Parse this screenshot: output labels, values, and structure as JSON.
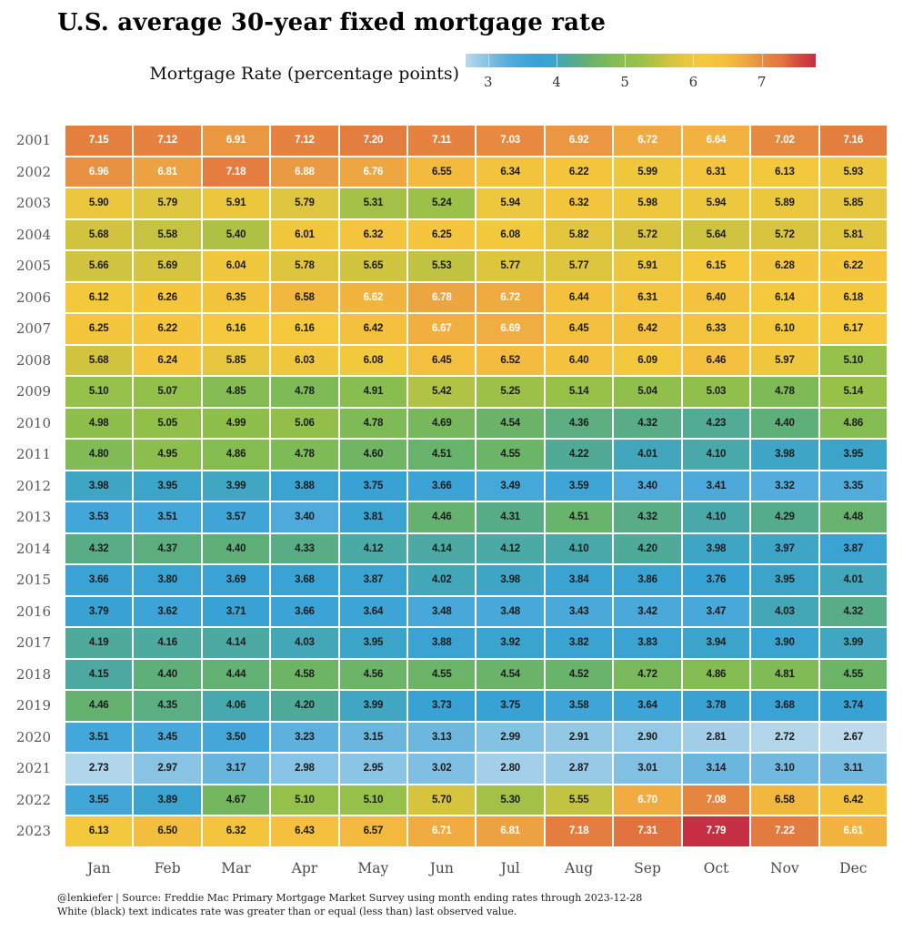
{
  "title": "U.S. average 30-year fixed mortgage rate",
  "legend": {
    "label": "Mortgage Rate  (percentage points)",
    "ticks": [
      3,
      4,
      5,
      6,
      7
    ]
  },
  "footer": {
    "line1": "@lenkiefer | Source: Freddie Mac Primary Mortgage Market Survey using month ending rates through 2023-12-28",
    "line2": "White (black) text indicates rate was greater than or equal (less than) last observed value."
  },
  "chart_data": {
    "type": "heatmap",
    "title": "U.S. average 30-year fixed mortgage rate",
    "x_categories": [
      "Jan",
      "Feb",
      "Mar",
      "Apr",
      "May",
      "Jun",
      "Jul",
      "Aug",
      "Sep",
      "Oct",
      "Nov",
      "Dec"
    ],
    "series": [
      {
        "name": "2001",
        "values": [
          7.15,
          7.12,
          6.91,
          7.12,
          7.2,
          7.11,
          7.03,
          6.92,
          6.72,
          6.64,
          7.02,
          7.16
        ]
      },
      {
        "name": "2002",
        "values": [
          6.96,
          6.81,
          7.18,
          6.88,
          6.76,
          6.55,
          6.34,
          6.22,
          5.99,
          6.31,
          6.13,
          5.93
        ]
      },
      {
        "name": "2003",
        "values": [
          5.9,
          5.79,
          5.91,
          5.79,
          5.31,
          5.24,
          5.94,
          6.32,
          5.98,
          5.94,
          5.89,
          5.85
        ]
      },
      {
        "name": "2004",
        "values": [
          5.68,
          5.58,
          5.4,
          6.01,
          6.32,
          6.25,
          6.08,
          5.82,
          5.72,
          5.64,
          5.72,
          5.81
        ]
      },
      {
        "name": "2005",
        "values": [
          5.66,
          5.69,
          6.04,
          5.78,
          5.65,
          5.53,
          5.77,
          5.77,
          5.91,
          6.15,
          6.28,
          6.22
        ]
      },
      {
        "name": "2006",
        "values": [
          6.12,
          6.26,
          6.35,
          6.58,
          6.62,
          6.78,
          6.72,
          6.44,
          6.31,
          6.4,
          6.14,
          6.18
        ]
      },
      {
        "name": "2007",
        "values": [
          6.25,
          6.22,
          6.16,
          6.16,
          6.42,
          6.67,
          6.69,
          6.45,
          6.42,
          6.33,
          6.1,
          6.17
        ]
      },
      {
        "name": "2008",
        "values": [
          5.68,
          6.24,
          5.85,
          6.03,
          6.08,
          6.45,
          6.52,
          6.4,
          6.09,
          6.46,
          5.97,
          5.1
        ]
      },
      {
        "name": "2009",
        "values": [
          5.1,
          5.07,
          4.85,
          4.78,
          4.91,
          5.42,
          5.25,
          5.14,
          5.04,
          5.03,
          4.78,
          5.14
        ]
      },
      {
        "name": "2010",
        "values": [
          4.98,
          5.05,
          4.99,
          5.06,
          4.78,
          4.69,
          4.54,
          4.36,
          4.32,
          4.23,
          4.4,
          4.86
        ]
      },
      {
        "name": "2011",
        "values": [
          4.8,
          4.95,
          4.86,
          4.78,
          4.6,
          4.51,
          4.55,
          4.22,
          4.01,
          4.1,
          3.98,
          3.95
        ]
      },
      {
        "name": "2012",
        "values": [
          3.98,
          3.95,
          3.99,
          3.88,
          3.75,
          3.66,
          3.49,
          3.59,
          3.4,
          3.41,
          3.32,
          3.35
        ]
      },
      {
        "name": "2013",
        "values": [
          3.53,
          3.51,
          3.57,
          3.4,
          3.81,
          4.46,
          4.31,
          4.51,
          4.32,
          4.1,
          4.29,
          4.48
        ]
      },
      {
        "name": "2014",
        "values": [
          4.32,
          4.37,
          4.4,
          4.33,
          4.12,
          4.14,
          4.12,
          4.1,
          4.2,
          3.98,
          3.97,
          3.87
        ]
      },
      {
        "name": "2015",
        "values": [
          3.66,
          3.8,
          3.69,
          3.68,
          3.87,
          4.02,
          3.98,
          3.84,
          3.86,
          3.76,
          3.95,
          4.01
        ]
      },
      {
        "name": "2016",
        "values": [
          3.79,
          3.62,
          3.71,
          3.66,
          3.64,
          3.48,
          3.48,
          3.43,
          3.42,
          3.47,
          4.03,
          4.32
        ]
      },
      {
        "name": "2017",
        "values": [
          4.19,
          4.16,
          4.14,
          4.03,
          3.95,
          3.88,
          3.92,
          3.82,
          3.83,
          3.94,
          3.9,
          3.99
        ]
      },
      {
        "name": "2018",
        "values": [
          4.15,
          4.4,
          4.44,
          4.58,
          4.56,
          4.55,
          4.54,
          4.52,
          4.72,
          4.86,
          4.81,
          4.55
        ]
      },
      {
        "name": "2019",
        "values": [
          4.46,
          4.35,
          4.06,
          4.2,
          3.99,
          3.73,
          3.75,
          3.58,
          3.64,
          3.78,
          3.68,
          3.74
        ]
      },
      {
        "name": "2020",
        "values": [
          3.51,
          3.45,
          3.5,
          3.23,
          3.15,
          3.13,
          2.99,
          2.91,
          2.9,
          2.81,
          2.72,
          2.67
        ]
      },
      {
        "name": "2021",
        "values": [
          2.73,
          2.97,
          3.17,
          2.98,
          2.95,
          3.02,
          2.8,
          2.87,
          3.01,
          3.14,
          3.1,
          3.11
        ]
      },
      {
        "name": "2022",
        "values": [
          3.55,
          3.89,
          4.67,
          5.1,
          5.1,
          5.7,
          5.3,
          5.55,
          6.7,
          7.08,
          6.58,
          6.42
        ]
      },
      {
        "name": "2023",
        "values": [
          6.13,
          6.5,
          6.32,
          6.43,
          6.57,
          6.71,
          6.81,
          7.18,
          7.31,
          7.79,
          7.22,
          6.61
        ]
      }
    ],
    "scale_min": 2.67,
    "scale_max": 7.79,
    "last_observed_value": 6.61,
    "text_colors": {
      "high": "#ffffff",
      "low": "#1b1b1b"
    },
    "colormap": [
      [
        2.67,
        "#bcdaeb"
      ],
      [
        2.8,
        "#a4cfe8"
      ],
      [
        2.95,
        "#8bc5e5"
      ],
      [
        3.1,
        "#71b9e0"
      ],
      [
        3.3,
        "#55acdc"
      ],
      [
        3.5,
        "#45a7d9"
      ],
      [
        3.7,
        "#39a2d5"
      ],
      [
        3.9,
        "#3aa3d0"
      ],
      [
        3.97,
        "#3ea5c6"
      ],
      [
        4.05,
        "#46a8b2"
      ],
      [
        4.15,
        "#4da9a1"
      ],
      [
        4.3,
        "#56ac8a"
      ],
      [
        4.45,
        "#64b171"
      ],
      [
        4.6,
        "#6fb563"
      ],
      [
        4.8,
        "#80bb55"
      ],
      [
        5.0,
        "#8fbf4b"
      ],
      [
        5.25,
        "#9dc148"
      ],
      [
        5.5,
        "#bcc343"
      ],
      [
        5.7,
        "#d6c43f"
      ],
      [
        5.9,
        "#ecc73d"
      ],
      [
        6.15,
        "#f5c83d"
      ],
      [
        6.4,
        "#f4c23e"
      ],
      [
        6.55,
        "#f3ba3e"
      ],
      [
        6.7,
        "#f0ac41"
      ],
      [
        6.85,
        "#eb9e43"
      ],
      [
        7.0,
        "#e88c41"
      ],
      [
        7.15,
        "#e47f3f"
      ],
      [
        7.3,
        "#e2753f"
      ],
      [
        7.5,
        "#d5513f"
      ],
      [
        7.65,
        "#cd3d42"
      ],
      [
        7.79,
        "#c62f43"
      ]
    ]
  }
}
